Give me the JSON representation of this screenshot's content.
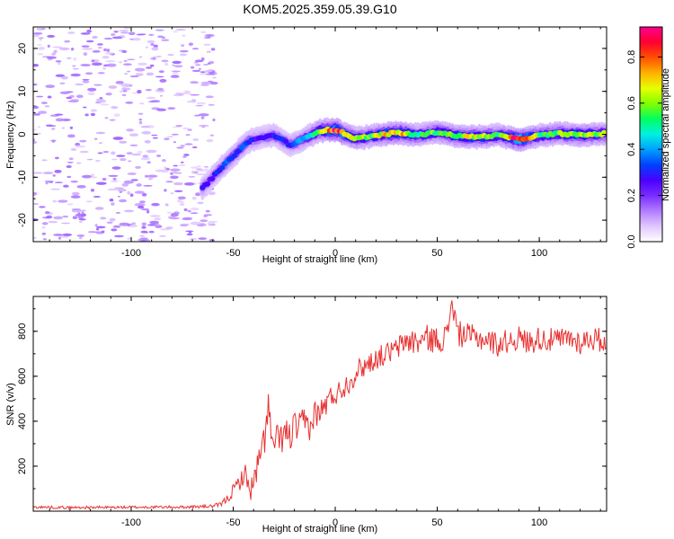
{
  "figure": {
    "title": "KOM5.2025.359.05.39.G10"
  },
  "chart_data": [
    {
      "type": "heatmap",
      "title": "KOM5.2025.359.05.39.G10",
      "xlabel": "Height of straight line (km)",
      "ylabel": "Frequency (Hz)",
      "xlim": [
        -148,
        133
      ],
      "ylim": [
        -25,
        25
      ],
      "xticks": [
        -100,
        -50,
        0,
        50,
        100
      ],
      "xtick_labels": [
        "-100",
        "-50",
        "0",
        "50",
        "100"
      ],
      "yticks": [
        -20,
        -10,
        0,
        10,
        20
      ],
      "ytick_labels": [
        "-20",
        "-10",
        "0",
        "10",
        "20"
      ],
      "noise_region_x": [
        -148,
        -59
      ],
      "ridge": {
        "x": [
          -65,
          -58,
          -50,
          -42,
          -36,
          -30,
          -22,
          -15,
          -8,
          0,
          10,
          20,
          30,
          40,
          50,
          60,
          70,
          80,
          90,
          100,
          110,
          120,
          133
        ],
        "y": [
          -12.5,
          -9,
          -5,
          -1.5,
          -0.8,
          -0.2,
          -2.5,
          -1,
          0.8,
          1.1,
          -1.0,
          -0.3,
          0.4,
          -0.2,
          0.5,
          -0.4,
          -0.6,
          -0.2,
          -1.2,
          -0.3,
          0.2,
          -0.2,
          0.2
        ],
        "amplitude": [
          0.25,
          0.3,
          0.35,
          0.3,
          0.25,
          0.3,
          0.3,
          0.4,
          0.55,
          0.9,
          0.55,
          0.6,
          0.75,
          0.55,
          0.55,
          0.6,
          0.65,
          0.55,
          0.9,
          0.55,
          0.6,
          0.65,
          0.55
        ]
      },
      "colorbar": {
        "label": "Normalized spectral amplitude",
        "range": [
          0,
          0.93
        ],
        "ticks": [
          0,
          0.2,
          0.4,
          0.6,
          0.8
        ],
        "tick_labels": [
          "0.0",
          "0.2",
          "0.4",
          "0.6",
          "0.8"
        ],
        "colormap": [
          "#ffffff",
          "#e0c8ff",
          "#b27cff",
          "#7a2dff",
          "#4a00ff",
          "#0040ff",
          "#00a0ff",
          "#00f0e0",
          "#00ff60",
          "#80ff00",
          "#e8ff00",
          "#ffb000",
          "#ff5000",
          "#ff0030",
          "#ff0090"
        ]
      }
    },
    {
      "type": "line",
      "xlabel": "Height of straight line (km)",
      "ylabel": "SNR (v/v)",
      "xlim": [
        -148,
        133
      ],
      "ylim": [
        0,
        955
      ],
      "xticks": [
        -100,
        -50,
        0,
        50,
        100
      ],
      "xtick_labels": [
        "-100",
        "-50",
        "0",
        "50",
        "100"
      ],
      "yticks": [
        200,
        400,
        600,
        800
      ],
      "ytick_labels": [
        "200",
        "400",
        "600",
        "800"
      ],
      "series": [
        {
          "name": "SNR",
          "color": "#e83030",
          "x": [
            -148,
            -130,
            -110,
            -90,
            -75,
            -60,
            -56,
            -53,
            -50,
            -47,
            -44,
            -42,
            -40,
            -38,
            -36,
            -34,
            -33,
            -31,
            -29,
            -27,
            -25,
            -22,
            -20,
            -18,
            -15,
            -12,
            -10,
            -8,
            -5,
            -3,
            0,
            3,
            5,
            8,
            10,
            15,
            20,
            25,
            30,
            35,
            40,
            45,
            50,
            55,
            57,
            60,
            65,
            70,
            75,
            80,
            85,
            90,
            95,
            100,
            105,
            110,
            115,
            120,
            125,
            130,
            133
          ],
          "y": [
            18,
            16,
            17,
            18,
            18,
            22,
            30,
            55,
            90,
            130,
            170,
            90,
            120,
            200,
            260,
            360,
            500,
            280,
            320,
            310,
            350,
            330,
            380,
            360,
            400,
            370,
            440,
            430,
            470,
            500,
            520,
            540,
            560,
            580,
            620,
            650,
            680,
            700,
            720,
            760,
            750,
            770,
            760,
            780,
            950,
            790,
            780,
            770,
            760,
            740,
            760,
            770,
            750,
            770,
            760,
            760,
            770,
            750,
            770,
            760,
            760
          ],
          "noise_amplitude": [
            6,
            6,
            6,
            6,
            6,
            8,
            10,
            20,
            30,
            40,
            40,
            50,
            60,
            70,
            70,
            90,
            90,
            70,
            70,
            70,
            70,
            70,
            70,
            70,
            70,
            60,
            60,
            60,
            60,
            55,
            50,
            50,
            50,
            50,
            50,
            50,
            50,
            50,
            50,
            60,
            60,
            60,
            60,
            60,
            60,
            60,
            55,
            55,
            55,
            55,
            55,
            55,
            55,
            55,
            55,
            55,
            55,
            55,
            55,
            55,
            55
          ]
        }
      ]
    }
  ]
}
